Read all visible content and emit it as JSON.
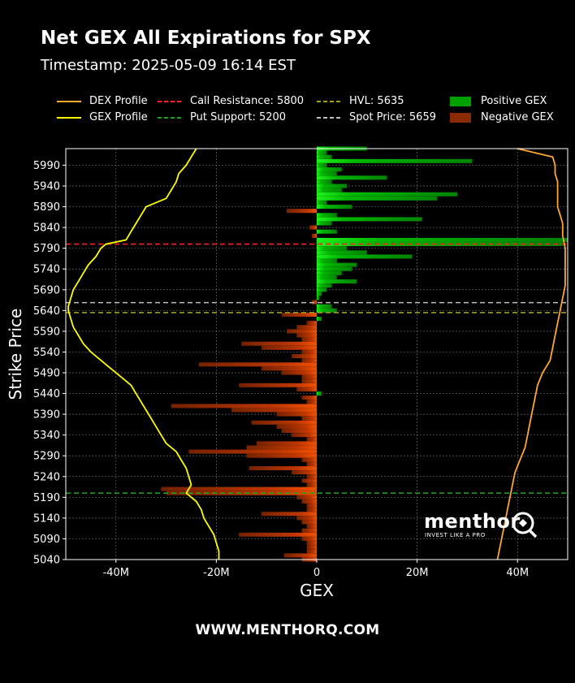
{
  "header": {
    "title": "Net GEX All Expirations for SPX",
    "subtitle": "Timestamp: 2025-05-09 16:14 EST"
  },
  "legend": {
    "items": [
      {
        "label": "DEX Profile",
        "kind": "line",
        "color": "#ffa830",
        "dash": false
      },
      {
        "label": "GEX Profile",
        "kind": "line",
        "color": "#ffff00",
        "dash": false
      },
      {
        "label": "Call Resistance: 5800",
        "kind": "line",
        "color": "#ff2020",
        "dash": true
      },
      {
        "label": "Put Support: 5200",
        "kind": "line",
        "color": "#20a020",
        "dash": true
      },
      {
        "label": "HVL: 5635",
        "kind": "line",
        "color": "#a0a020",
        "dash": true
      },
      {
        "label": "Spot Price: 5659",
        "kind": "line",
        "color": "#c0c0c0",
        "dash": true
      },
      {
        "label": "Positive GEX",
        "kind": "patch",
        "color": "#00a000"
      },
      {
        "label": "Negative GEX",
        "kind": "patch",
        "color": "#8a2a00"
      }
    ]
  },
  "footer": {
    "text": "WWW.MENTHORQ.COM"
  },
  "logo": {
    "name": "menthor",
    "tagline": "INVEST LIKE A PRO"
  },
  "chart_data": {
    "type": "bar",
    "orientation": "horizontal",
    "title": "Net GEX All Expirations for SPX",
    "xlabel": "GEX",
    "ylabel": "Strike Price",
    "xlim": [
      -50,
      50
    ],
    "x_unit": "M",
    "ylim": [
      5040,
      6030
    ],
    "xticks": [
      {
        "value": -40,
        "label": "-40M"
      },
      {
        "value": -20,
        "label": "-20M"
      },
      {
        "value": 0,
        "label": "0"
      },
      {
        "value": 20,
        "label": "20M"
      },
      {
        "value": 40,
        "label": "40M"
      }
    ],
    "yticks": [
      5040,
      5090,
      5140,
      5190,
      5240,
      5290,
      5340,
      5390,
      5440,
      5490,
      5540,
      5590,
      5640,
      5690,
      5740,
      5790,
      5840,
      5890,
      5940,
      5990
    ],
    "grid": true,
    "levels": {
      "call_resistance": 5800,
      "put_support": 5200,
      "hvl": 5635,
      "spot_price": 5659
    },
    "gex_series": {
      "name": "Net GEX",
      "strikes": [
        6030,
        6020,
        6010,
        6000,
        5990,
        5980,
        5970,
        5960,
        5950,
        5940,
        5930,
        5920,
        5910,
        5900,
        5890,
        5880,
        5870,
        5860,
        5850,
        5840,
        5830,
        5820,
        5810,
        5800,
        5790,
        5780,
        5770,
        5760,
        5750,
        5740,
        5730,
        5720,
        5710,
        5700,
        5690,
        5680,
        5670,
        5660,
        5650,
        5640,
        5630,
        5620,
        5610,
        5600,
        5590,
        5580,
        5570,
        5560,
        5550,
        5540,
        5530,
        5520,
        5510,
        5500,
        5490,
        5480,
        5470,
        5460,
        5450,
        5440,
        5430,
        5420,
        5410,
        5400,
        5390,
        5380,
        5370,
        5360,
        5350,
        5340,
        5330,
        5320,
        5310,
        5300,
        5290,
        5280,
        5270,
        5260,
        5250,
        5240,
        5230,
        5220,
        5210,
        5200,
        5190,
        5180,
        5170,
        5160,
        5150,
        5140,
        5130,
        5120,
        5110,
        5100,
        5090,
        5080,
        5070,
        5060,
        5050,
        5040
      ],
      "values": [
        10,
        2,
        3,
        31,
        2,
        5,
        4,
        14,
        3,
        6,
        5,
        28,
        24,
        2,
        7,
        -6,
        4,
        21,
        3,
        -1.5,
        4,
        -1,
        50,
        49,
        6,
        10,
        19,
        4,
        8,
        7,
        5,
        4,
        8,
        3,
        2,
        1,
        0.5,
        -1,
        3,
        4,
        -7,
        1,
        -2,
        -4,
        -6,
        -4,
        -3,
        -15,
        -11,
        -3,
        -5,
        -3,
        -23.5,
        -11,
        -7,
        -3,
        -3,
        -15.5,
        -4,
        1,
        -3,
        -2,
        -29,
        -17,
        -8,
        -3,
        -13,
        -8,
        -7,
        -5,
        -2,
        -12,
        -14,
        -25.5,
        -14,
        -3,
        -2,
        -13.5,
        -5,
        -2,
        -3,
        -2,
        -31,
        -30,
        -4,
        -3,
        -2,
        -2,
        -11,
        -4,
        -3,
        -2,
        -3,
        -15.5,
        -3,
        -2,
        -2,
        -2,
        -6.5,
        -3
      ]
    },
    "dex_profile": {
      "name": "DEX Profile",
      "strikes": [
        6030,
        6010,
        5990,
        5970,
        5950,
        5920,
        5890,
        5870,
        5850,
        5820,
        5790,
        5760,
        5730,
        5700,
        5670,
        5640,
        5610,
        5580,
        5550,
        5520,
        5490,
        5460,
        5430,
        5400,
        5370,
        5340,
        5310,
        5280,
        5250,
        5220,
        5190,
        5160,
        5130,
        5100,
        5070,
        5040
      ],
      "values": [
        40,
        47,
        47.5,
        47.5,
        48,
        48,
        48,
        48.5,
        49,
        49,
        49.5,
        49.5,
        49.5,
        49.5,
        49,
        48.5,
        48,
        47.5,
        47,
        46.5,
        45,
        44,
        43.5,
        43,
        42.5,
        42,
        41.5,
        40.5,
        39.5,
        39,
        38.5,
        38,
        37.5,
        37,
        36.5,
        36
      ]
    },
    "gex_profile": {
      "name": "GEX Profile",
      "strikes": [
        6030,
        6010,
        5990,
        5970,
        5950,
        5930,
        5910,
        5890,
        5870,
        5850,
        5830,
        5810,
        5800,
        5790,
        5770,
        5750,
        5730,
        5710,
        5690,
        5670,
        5650,
        5640,
        5620,
        5600,
        5580,
        5560,
        5540,
        5520,
        5500,
        5480,
        5460,
        5440,
        5420,
        5400,
        5380,
        5360,
        5340,
        5320,
        5300,
        5280,
        5260,
        5240,
        5220,
        5200,
        5180,
        5160,
        5140,
        5120,
        5100,
        5080,
        5060,
        5040
      ],
      "values": [
        -24,
        -25,
        -26,
        -27.5,
        -28,
        -29,
        -30,
        -34,
        -35,
        -36,
        -37,
        -38,
        -42,
        -43,
        -44,
        -45.5,
        -46.5,
        -47.5,
        -48.5,
        -49,
        -49.5,
        -49.5,
        -49,
        -48.5,
        -47.5,
        -46.5,
        -45,
        -43,
        -41,
        -39,
        -37,
        -36,
        -35,
        -34,
        -33,
        -32,
        -31,
        -30,
        -28,
        -27,
        -26,
        -25.5,
        -25,
        -26,
        -24,
        -23,
        -22.5,
        -21.5,
        -20.5,
        -20,
        -19.5,
        -19.5
      ]
    }
  }
}
